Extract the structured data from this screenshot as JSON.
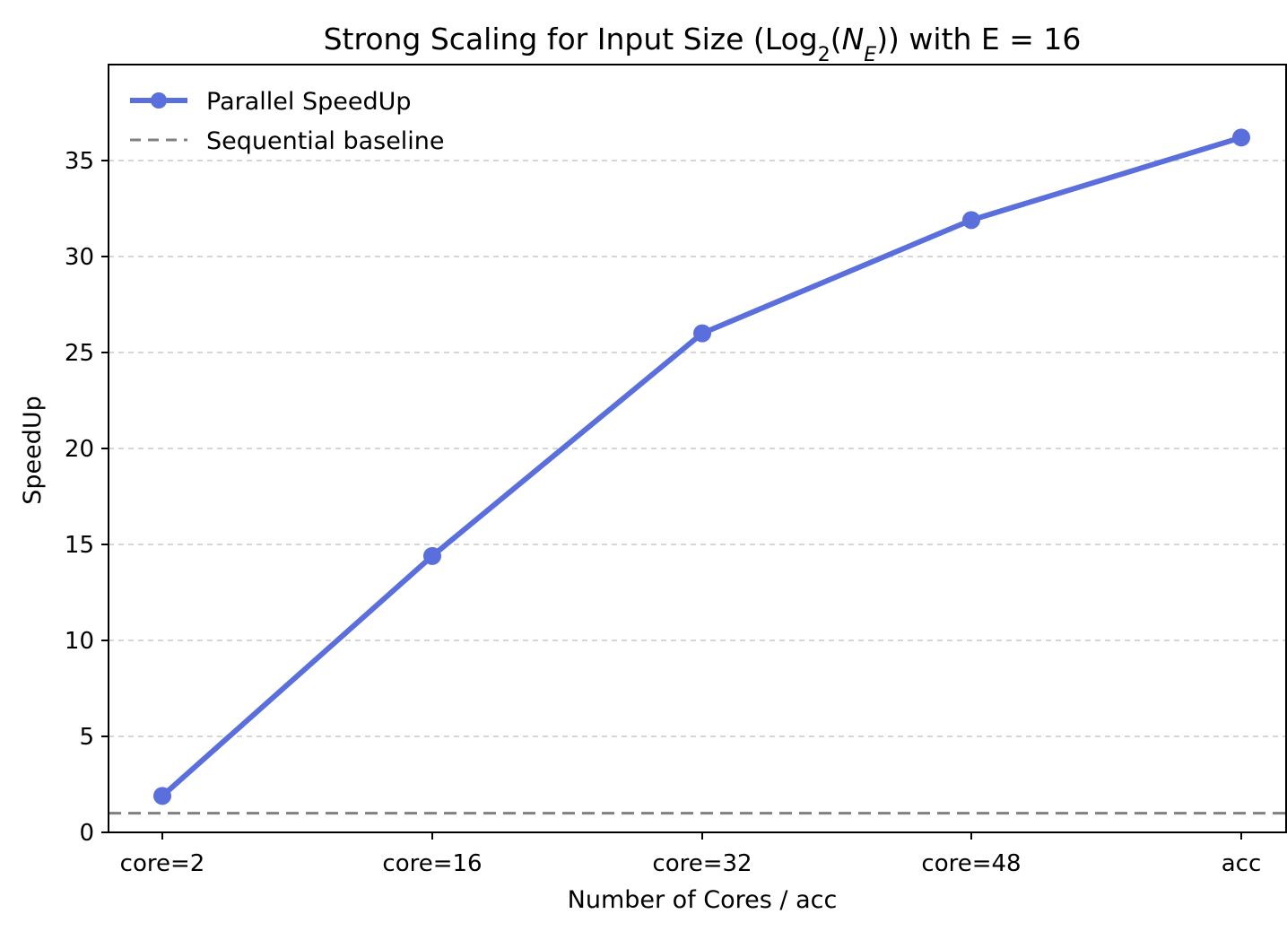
{
  "chart_data": {
    "type": "line",
    "title": {
      "before": "Strong Scaling for Input Size (Log",
      "sub": "2",
      "mid": "(",
      "italic": "N",
      "italic_sub": "E",
      "after": ")) with E = 16"
    },
    "xlabel": "Number of Cores / acc",
    "ylabel": "SpeedUp",
    "categories": [
      "core=2",
      "core=16",
      "core=32",
      "core=48",
      "acc"
    ],
    "ylim": [
      0,
      40
    ],
    "yticks": [
      0,
      5,
      10,
      15,
      20,
      25,
      30,
      35
    ],
    "grid": "y-dashed",
    "legend_position": "top-left",
    "series": [
      {
        "name": "Parallel SpeedUp",
        "values": [
          1.9,
          14.4,
          26.0,
          31.9,
          36.2
        ],
        "color": "#5a6fdc",
        "style": "solid-with-markers"
      }
    ],
    "reference_lines": [
      {
        "name": "Sequential baseline",
        "y": 1,
        "color": "#808080",
        "style": "dashed"
      }
    ]
  }
}
